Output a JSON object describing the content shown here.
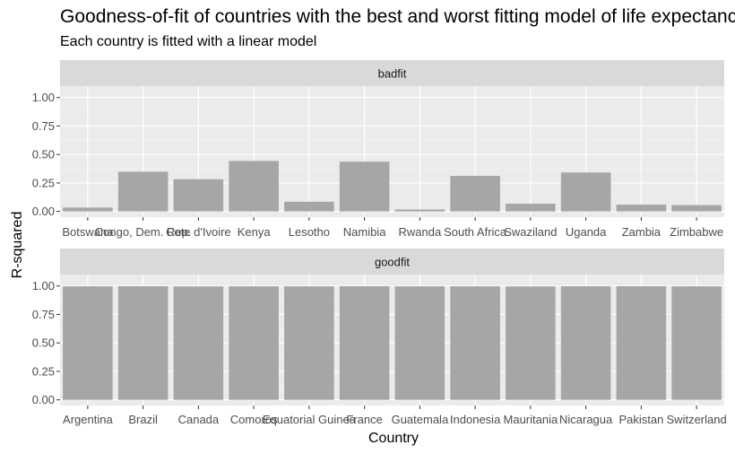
{
  "chart_data": {
    "type": "bar",
    "title": "Goodness-of-fit of countries with the best and worst fitting model of life expectancy",
    "subtitle": "Each country is fitted with a linear model",
    "xlabel": "Country",
    "ylabel": "R-squared",
    "ylim": [
      0,
      1.0
    ],
    "yticks": [
      "0.00",
      "0.25",
      "0.50",
      "0.75",
      "1.00"
    ],
    "grid": true,
    "panels": [
      {
        "name": "badfit",
        "categories": [
          "Botswana",
          "Congo, Dem. Rep.",
          "Cote d'Ivoire",
          "Kenya",
          "Lesotho",
          "Namibia",
          "Rwanda",
          "South Africa",
          "Swaziland",
          "Uganda",
          "Zambia",
          "Zimbabwe"
        ],
        "values": [
          0.034,
          0.348,
          0.283,
          0.443,
          0.085,
          0.437,
          0.017,
          0.312,
          0.068,
          0.342,
          0.06,
          0.056
        ]
      },
      {
        "name": "goodfit",
        "categories": [
          "Argentina",
          "Brazil",
          "Canada",
          "Comoros",
          "Equatorial Guinea",
          "France",
          "Guatemala",
          "Indonesia",
          "Mauritania",
          "Nicaragua",
          "Pakistan",
          "Switzerland"
        ],
        "values": [
          0.997,
          0.998,
          0.996,
          0.997,
          0.997,
          0.998,
          0.997,
          0.997,
          0.996,
          0.998,
          0.998,
          0.997
        ]
      }
    ]
  }
}
